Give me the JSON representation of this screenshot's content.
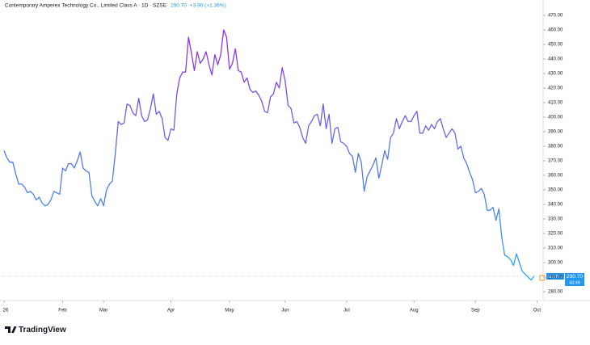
{
  "chart_data": {
    "type": "line",
    "title": "Contemporary Amperex Technology Co., Limited Class A · 1D · SZSE",
    "last_price": "290.70",
    "change": "+3.90 (+1.36%)",
    "symbol_tag": "300750",
    "price_tag": "290.70",
    "countdown": "43:49",
    "brand": "TradingView",
    "gradient": [
      "#a020f0",
      "#5b73e8",
      "#2aa8ec"
    ],
    "price_color": "#2196f3",
    "grid": false,
    "values": [
      377,
      372,
      369,
      369,
      361,
      354,
      354,
      352,
      348,
      349,
      347,
      343,
      345,
      341,
      339,
      340,
      343,
      349,
      348,
      347,
      365,
      363,
      368,
      368,
      365,
      370,
      376,
      365,
      363,
      362,
      346,
      342,
      339,
      344,
      339,
      350,
      354,
      356,
      375,
      397,
      395,
      396,
      409,
      408,
      403,
      401,
      413,
      401,
      397,
      398,
      406,
      416,
      402,
      404,
      399,
      386,
      384,
      392,
      391,
      416,
      427,
      431,
      431,
      455,
      444,
      432,
      445,
      437,
      440,
      445,
      436,
      429,
      443,
      436,
      443,
      460,
      455,
      433,
      437,
      447,
      432,
      431,
      424,
      427,
      419,
      417,
      418,
      415,
      411,
      404,
      403,
      414,
      416,
      424,
      420,
      434,
      425,
      408,
      406,
      396,
      397,
      393,
      386,
      382,
      394,
      397,
      401,
      402,
      394,
      409,
      392,
      402,
      382,
      392,
      393,
      383,
      382,
      380,
      375,
      373,
      362,
      375,
      369,
      349,
      359,
      363,
      367,
      372,
      358,
      367,
      377,
      371,
      386,
      389,
      399,
      392,
      397,
      401,
      397,
      397,
      401,
      404,
      389,
      389,
      394,
      391,
      395,
      392,
      397,
      399,
      392,
      386,
      389,
      392,
      389,
      378,
      380,
      372,
      368,
      362,
      357,
      348,
      349,
      351,
      347,
      336,
      336,
      338,
      329,
      337,
      317,
      305,
      304,
      302,
      298,
      306,
      300,
      294,
      292,
      290,
      288,
      290.7
    ],
    "xlim": [
      0,
      183
    ],
    "xticks": [
      {
        "value": 0,
        "label": "26"
      },
      {
        "value": 20,
        "label": "Feb"
      },
      {
        "value": 34,
        "label": "Mar"
      },
      {
        "value": 57,
        "label": "Apr"
      },
      {
        "value": 77,
        "label": "May"
      },
      {
        "value": 96,
        "label": "Jun"
      },
      {
        "value": 117,
        "label": "Jul"
      },
      {
        "value": 140,
        "label": "Aug"
      },
      {
        "value": 161,
        "label": "Sep"
      },
      {
        "value": 182,
        "label": "Oct"
      }
    ],
    "ylim": [
      280,
      470
    ],
    "yticks": [
      {
        "value": 280,
        "label": "280.00"
      },
      {
        "value": 290,
        "label": "290.00"
      },
      {
        "value": 300,
        "label": "300.00"
      },
      {
        "value": 310,
        "label": "310.00"
      },
      {
        "value": 320,
        "label": "320.00"
      },
      {
        "value": 330,
        "label": "330.00"
      },
      {
        "value": 340,
        "label": "340.00"
      },
      {
        "value": 350,
        "label": "350.00"
      },
      {
        "value": 360,
        "label": "360.00"
      },
      {
        "value": 370,
        "label": "370.00"
      },
      {
        "value": 380,
        "label": "380.00"
      },
      {
        "value": 390,
        "label": "390.00"
      },
      {
        "value": 400,
        "label": "400.00"
      },
      {
        "value": 410,
        "label": "410.00"
      },
      {
        "value": 420,
        "label": "420.00"
      },
      {
        "value": 430,
        "label": "430.00"
      },
      {
        "value": 440,
        "label": "440.00"
      },
      {
        "value": 450,
        "label": "450.00"
      },
      {
        "value": 460,
        "label": "460.00"
      },
      {
        "value": 470,
        "label": "470.00"
      }
    ]
  }
}
